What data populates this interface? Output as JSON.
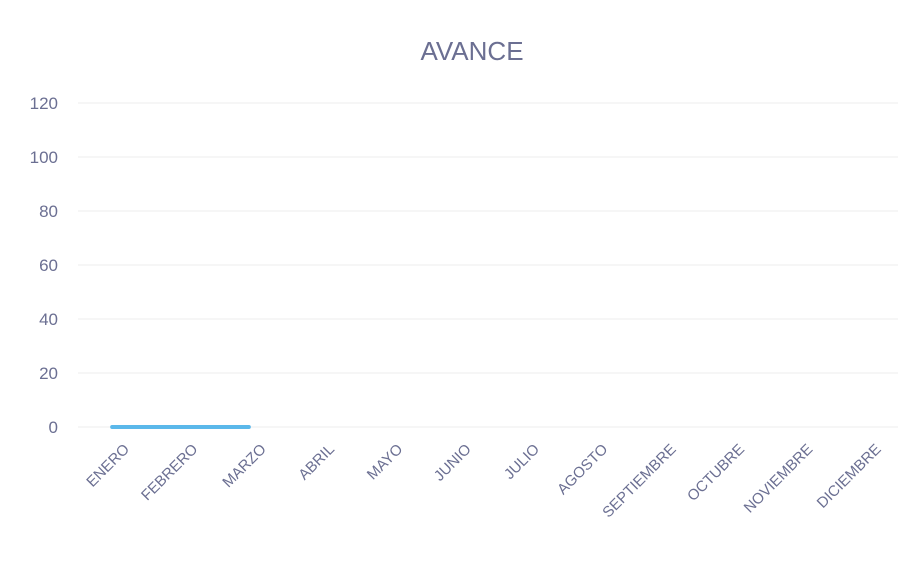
{
  "chart_data": {
    "type": "line",
    "title": "AVANCE",
    "xlabel": "",
    "ylabel": "",
    "categories": [
      "ENERO",
      "FEBRERO",
      "MARZO",
      "ABRIL",
      "MAYO",
      "JUNIO",
      "JULIO",
      "AGOSTO",
      "SEPTIEMBRE",
      "OCTUBRE",
      "NOVIEMBRE",
      "DICIEMBRE"
    ],
    "series": [
      {
        "values": [
          0,
          0,
          0,
          null,
          null,
          null,
          null,
          null,
          null,
          null,
          null,
          null
        ],
        "color": "#5bb8ea"
      }
    ],
    "ylim": [
      0,
      120
    ],
    "yticks": [
      0,
      20,
      40,
      60,
      80,
      100,
      120
    ],
    "grid": true,
    "legend": "none"
  }
}
